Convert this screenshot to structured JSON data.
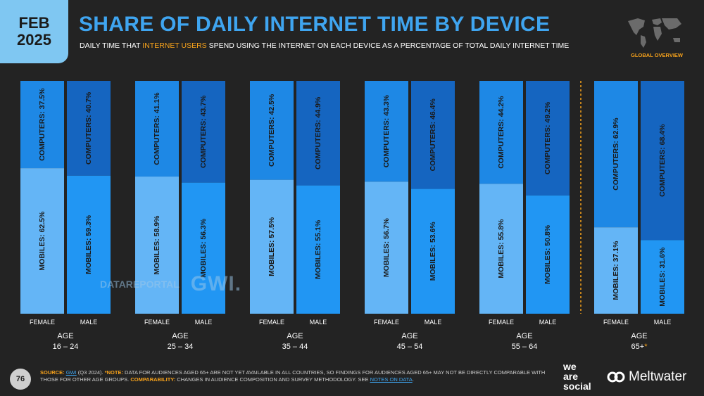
{
  "header": {
    "date_month": "FEB",
    "date_year": "2025",
    "title": "SHARE OF DAILY INTERNET TIME BY DEVICE",
    "subtitle_pre": "DAILY TIME THAT ",
    "subtitle_highlight": "INTERNET USERS",
    "subtitle_post": " SPEND USING THE INTERNET ON EACH DEVICE AS A PERCENTAGE OF TOTAL DAILY INTERNET TIME",
    "global_label": "GLOBAL OVERVIEW"
  },
  "watermark": {
    "datareportal": "DATAREPORTAL",
    "gwi": "GWI."
  },
  "chart_data": {
    "type": "bar",
    "stacked": true,
    "percent": true,
    "group_label": "AGE",
    "ylim": [
      0,
      100
    ],
    "groups": [
      {
        "age": "16 – 24",
        "note": "",
        "bars": [
          {
            "gender": "FEMALE",
            "mobiles": 62.5,
            "computers": 37.5
          },
          {
            "gender": "MALE",
            "mobiles": 59.3,
            "computers": 40.7
          }
        ]
      },
      {
        "age": "25 – 34",
        "note": "",
        "bars": [
          {
            "gender": "FEMALE",
            "mobiles": 58.9,
            "computers": 41.1
          },
          {
            "gender": "MALE",
            "mobiles": 56.3,
            "computers": 43.7
          }
        ]
      },
      {
        "age": "35 – 44",
        "note": "",
        "bars": [
          {
            "gender": "FEMALE",
            "mobiles": 57.5,
            "computers": 42.5
          },
          {
            "gender": "MALE",
            "mobiles": 55.1,
            "computers": 44.9
          }
        ]
      },
      {
        "age": "45 – 54",
        "note": "",
        "bars": [
          {
            "gender": "FEMALE",
            "mobiles": 56.7,
            "computers": 43.3
          },
          {
            "gender": "MALE",
            "mobiles": 53.6,
            "computers": 46.4
          }
        ]
      },
      {
        "age": "55 – 64",
        "note": "",
        "bars": [
          {
            "gender": "FEMALE",
            "mobiles": 55.8,
            "computers": 44.2
          },
          {
            "gender": "MALE",
            "mobiles": 50.8,
            "computers": 49.2
          }
        ]
      },
      {
        "age": "65+",
        "note": "*",
        "bars": [
          {
            "gender": "FEMALE",
            "mobiles": 37.1,
            "computers": 62.9
          },
          {
            "gender": "MALE",
            "mobiles": 31.6,
            "computers": 68.4
          }
        ]
      }
    ],
    "series": [
      {
        "name": "MOBILES",
        "label_prefix": "MOBILES: "
      },
      {
        "name": "COMPUTERS",
        "label_prefix": "COMPUTERS: "
      }
    ],
    "colors": {
      "female_mobiles": "#64b5f6",
      "female_computers": "#1e88e5",
      "male_mobiles": "#2196f3",
      "male_computers": "#1565c0",
      "divider": "#f7a21b"
    }
  },
  "footer": {
    "page_number": "76",
    "source_label": "SOURCE:",
    "source_gwi": "GWI",
    "source_rest": " (Q3 2024). ",
    "note_label": "*NOTE:",
    "note_text": " DATA FOR AUDIENCES AGED 65+ ARE NOT YET AVAILABLE IN ALL COUNTRIES, SO FINDINGS FOR AUDIENCES AGED 65+ MAY NOT BE DIRECTLY COMPARABLE WITH THOSE FOR OTHER AGE GROUPS. ",
    "comparability_label": "COMPARABILITY:",
    "comparability_text": " CHANGES IN AUDIENCE COMPOSITION AND SURVEY METHODOLOGY. SEE ",
    "notes_link": "NOTES ON DATA",
    "notes_end": ".",
    "brand_was": [
      "we",
      "are",
      "social"
    ],
    "brand_meltwater": "Meltwater"
  }
}
